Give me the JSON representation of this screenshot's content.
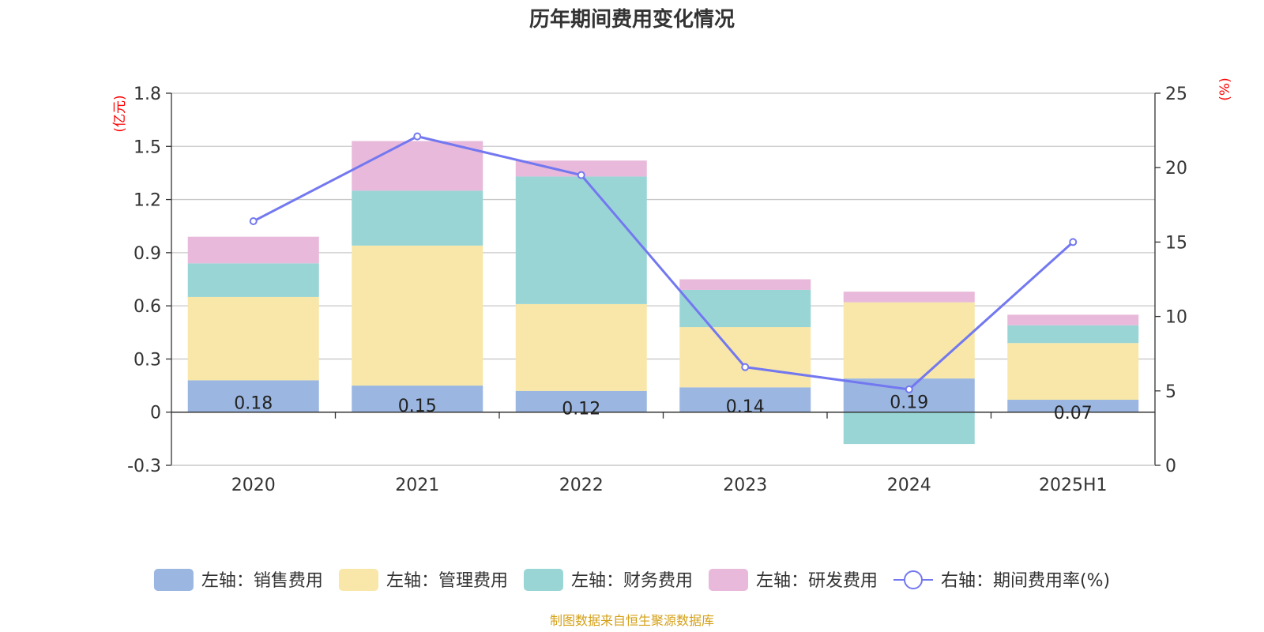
{
  "title": "历年期间费用变化情况",
  "source": "制图数据来自恒生聚源数据库",
  "chart_data": {
    "type": "bar",
    "stacked": true,
    "categories": [
      "2020",
      "2021",
      "2022",
      "2023",
      "2024",
      "2025H1"
    ],
    "left_axis": {
      "unit": "(亿元)",
      "ylim": [
        -0.3,
        1.8
      ],
      "ticks": [
        -0.3,
        0,
        0.3,
        0.6,
        0.9,
        1.2,
        1.5,
        1.8
      ],
      "tick_labels": [
        "-0.3",
        "0",
        "0.3",
        "0.6",
        "0.9",
        "1.2",
        "1.5",
        "1.8"
      ]
    },
    "right_axis": {
      "unit": "(%)",
      "ylim": [
        0,
        25
      ],
      "ticks": [
        0,
        5,
        10,
        15,
        20,
        25
      ],
      "tick_labels": [
        "0",
        "5",
        "10",
        "15",
        "20",
        "25"
      ]
    },
    "series": [
      {
        "name": "左轴：销售费用",
        "axis": "left",
        "kind": "bar",
        "color": "#9bb7e1",
        "values": [
          0.18,
          0.15,
          0.12,
          0.14,
          0.19,
          0.07
        ],
        "labels": [
          "0.18",
          "0.15",
          "0.12",
          "0.14",
          "0.19",
          "0.07"
        ]
      },
      {
        "name": "左轴：管理费用",
        "axis": "left",
        "kind": "bar",
        "color": "#f8e7a8",
        "values": [
          0.47,
          0.79,
          0.49,
          0.34,
          0.43,
          0.32
        ]
      },
      {
        "name": "左轴：财务费用",
        "axis": "left",
        "kind": "bar",
        "color": "#99d5d5",
        "values": [
          0.19,
          0.31,
          0.72,
          0.21,
          -0.18,
          0.1
        ]
      },
      {
        "name": "左轴：研发费用",
        "axis": "left",
        "kind": "bar",
        "color": "#e8b9da",
        "values": [
          0.15,
          0.28,
          0.09,
          0.06,
          0.06,
          0.06
        ]
      },
      {
        "name": "右轴：期间费用率(%)",
        "axis": "right",
        "kind": "line",
        "color": "#7378f0",
        "values": [
          16.4,
          22.1,
          19.5,
          6.6,
          5.1,
          15.0
        ]
      }
    ],
    "grid": true,
    "legend_position": "bottom"
  }
}
